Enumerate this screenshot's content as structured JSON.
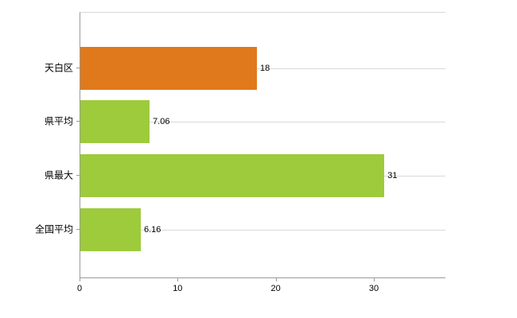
{
  "chart_data": {
    "type": "bar",
    "orientation": "horizontal",
    "title": "",
    "xlabel": "",
    "ylabel": "",
    "categories": [
      "天白区",
      "県平均",
      "県最大",
      "全国平均"
    ],
    "values": [
      18,
      7.06,
      31,
      6.16
    ],
    "value_labels": [
      "18",
      "7.06",
      "31",
      "6.16"
    ],
    "bar_colors": [
      "#e0791c",
      "#9dcb3b",
      "#9dcb3b",
      "#9dcb3b"
    ],
    "xlim": [
      0,
      37.3
    ],
    "x_ticks": [
      0,
      10,
      20,
      30
    ],
    "x_tick_labels": [
      "0",
      "10",
      "20",
      "30"
    ],
    "grid": "horizontal gridline per category, light gray",
    "legend": "none",
    "background": "#ffffff",
    "axis_color": "#9a9a9a",
    "gridline_color": "#d9d9d9"
  }
}
